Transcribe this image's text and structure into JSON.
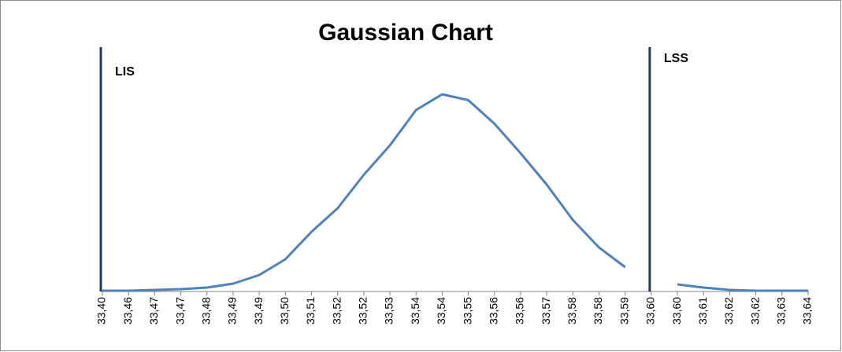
{
  "chart_data": {
    "type": "line",
    "title": "Gaussian Chart",
    "categories": [
      "33,40",
      "33,46",
      "33,47",
      "33,47",
      "33,48",
      "33,49",
      "33,49",
      "33,50",
      "33,51",
      "33,52",
      "33,52",
      "33,53",
      "33,54",
      "33,54",
      "33,55",
      "33,56",
      "33,56",
      "33,57",
      "33,58",
      "33,58",
      "33,59",
      "33,60",
      "33,60",
      "33,61",
      "33,62",
      "33,62",
      "33,63",
      "33,64"
    ],
    "series": [
      {
        "color": "#4f81bd",
        "values": [
          0,
          0,
          0.4,
          0.8,
          1.6,
          3.6,
          8,
          16,
          30,
          42,
          59,
          74,
          92,
          100,
          97,
          85,
          70,
          54,
          36,
          22,
          12,
          null,
          3.2,
          1.6,
          0.4,
          0,
          0,
          0
        ]
      }
    ],
    "ylim": [
      0,
      100
    ],
    "limits": [
      {
        "label": "LIS",
        "at": "33,40",
        "color": "#1f3864"
      },
      {
        "label": "LSS",
        "at": "33,60",
        "color": "#1f3864"
      }
    ]
  }
}
